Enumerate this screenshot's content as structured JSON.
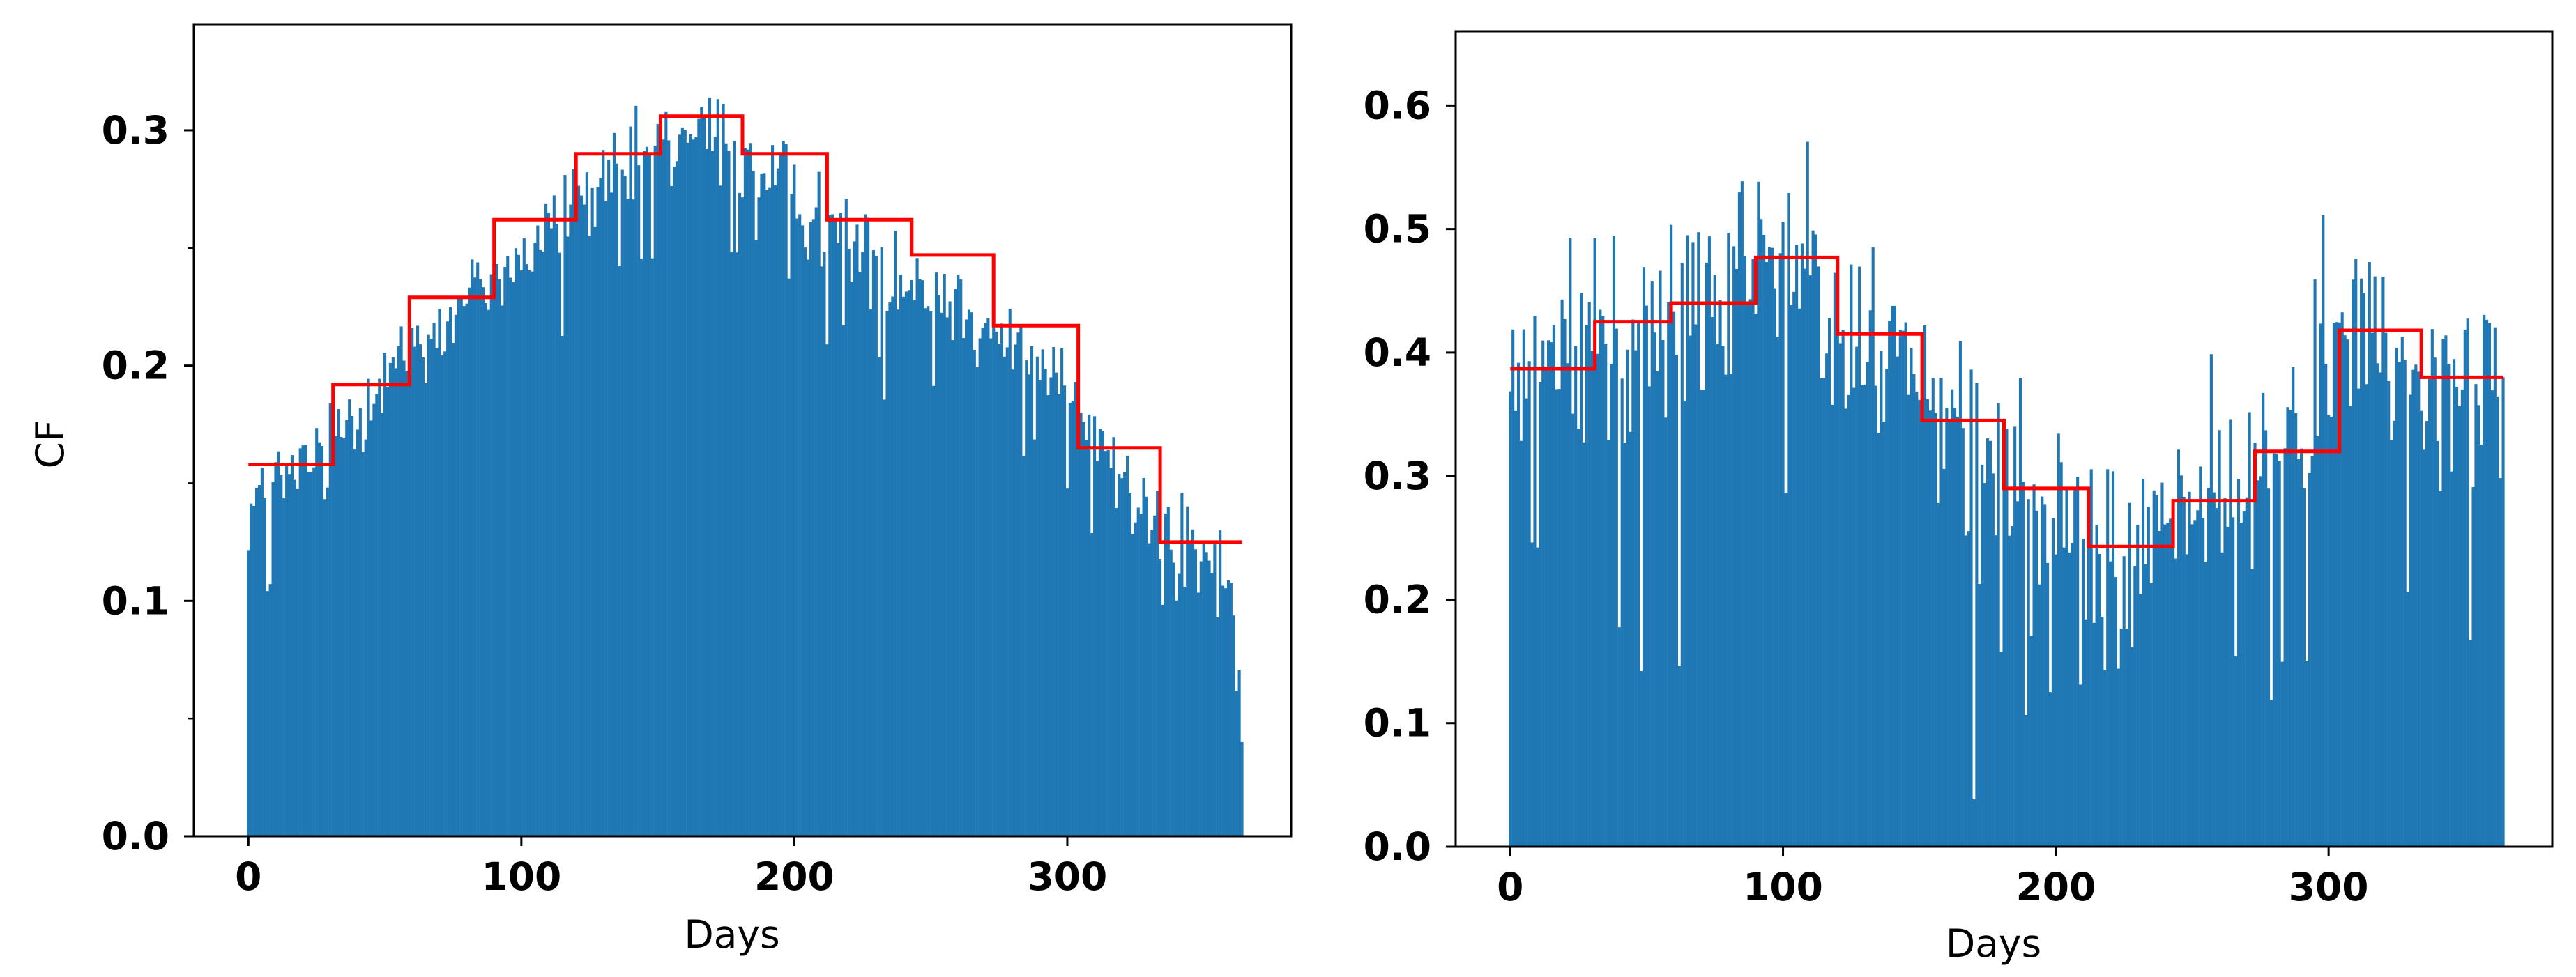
{
  "chart_data": [
    {
      "type": "bar",
      "title": "",
      "xlabel": "Days",
      "ylabel": "CF",
      "xlim": [
        -20,
        382
      ],
      "ylim": [
        0,
        0.345
      ],
      "xticks": [
        0,
        100,
        200,
        300
      ],
      "xtick_labels": [
        "0",
        "100",
        "200",
        "300"
      ],
      "yticks": [
        0.0,
        0.1,
        0.2,
        0.3
      ],
      "ytick_labels": [
        "0.0",
        "0.1",
        "0.2",
        "0.3"
      ],
      "minor_yticks": [
        0.05,
        0.15,
        0.25
      ],
      "grid": false,
      "legend": "none",
      "series": [
        {
          "type": "bar",
          "color": "#1f77b4",
          "x_range": [
            0,
            364
          ],
          "daily_values_sample": [
            {
              "x": 0,
              "y": 0.14
            },
            {
              "x": 10,
              "y": 0.15
            },
            {
              "x": 20,
              "y": 0.155
            },
            {
              "x": 30,
              "y": 0.17
            },
            {
              "x": 45,
              "y": 0.19
            },
            {
              "x": 60,
              "y": 0.21
            },
            {
              "x": 75,
              "y": 0.22
            },
            {
              "x": 90,
              "y": 0.24
            },
            {
              "x": 105,
              "y": 0.25
            },
            {
              "x": 120,
              "y": 0.27
            },
            {
              "x": 135,
              "y": 0.28
            },
            {
              "x": 150,
              "y": 0.29
            },
            {
              "x": 165,
              "y": 0.3
            },
            {
              "x": 180,
              "y": 0.29
            },
            {
              "x": 195,
              "y": 0.28
            },
            {
              "x": 210,
              "y": 0.26
            },
            {
              "x": 225,
              "y": 0.25
            },
            {
              "x": 240,
              "y": 0.24
            },
            {
              "x": 255,
              "y": 0.23
            },
            {
              "x": 270,
              "y": 0.22
            },
            {
              "x": 285,
              "y": 0.2
            },
            {
              "x": 300,
              "y": 0.19
            },
            {
              "x": 315,
              "y": 0.16
            },
            {
              "x": 330,
              "y": 0.14
            },
            {
              "x": 345,
              "y": 0.12
            },
            {
              "x": 360,
              "y": 0.11
            },
            {
              "x": 364,
              "y": 0.04
            }
          ],
          "noise_amplitude": 0.03
        },
        {
          "type": "step",
          "color": "#ff0000",
          "points": [
            [
              0,
              0.158
            ],
            [
              31,
              0.158
            ],
            [
              31,
              0.192
            ],
            [
              59,
              0.192
            ],
            [
              59,
              0.229
            ],
            [
              90,
              0.229
            ],
            [
              90,
              0.262
            ],
            [
              120,
              0.262
            ],
            [
              120,
              0.29
            ],
            [
              151,
              0.29
            ],
            [
              151,
              0.306
            ],
            [
              181,
              0.306
            ],
            [
              181,
              0.29
            ],
            [
              212,
              0.29
            ],
            [
              212,
              0.262
            ],
            [
              243,
              0.262
            ],
            [
              243,
              0.247
            ],
            [
              273,
              0.247
            ],
            [
              273,
              0.217
            ],
            [
              304,
              0.217
            ],
            [
              304,
              0.165
            ],
            [
              334,
              0.165
            ],
            [
              334,
              0.125
            ],
            [
              364,
              0.125
            ]
          ]
        }
      ]
    },
    {
      "type": "bar",
      "title": "",
      "xlabel": "Days",
      "ylabel": "",
      "xlim": [
        -20,
        382
      ],
      "ylim": [
        0,
        0.66
      ],
      "xticks": [
        0,
        100,
        200,
        300
      ],
      "xtick_labels": [
        "0",
        "100",
        "200",
        "300"
      ],
      "yticks": [
        0.0,
        0.1,
        0.2,
        0.3,
        0.4,
        0.5,
        0.6
      ],
      "ytick_labels": [
        "0.0",
        "0.1",
        "0.2",
        "0.3",
        "0.4",
        "0.5",
        "0.6"
      ],
      "minor_yticks": [],
      "grid": false,
      "legend": "none",
      "series": [
        {
          "type": "bar",
          "color": "#1f77b4",
          "x_range": [
            0,
            364
          ],
          "daily_values_sample": [
            {
              "x": 0,
              "y": 0.38
            },
            {
              "x": 15,
              "y": 0.39
            },
            {
              "x": 30,
              "y": 0.42
            },
            {
              "x": 45,
              "y": 0.43
            },
            {
              "x": 60,
              "y": 0.44
            },
            {
              "x": 75,
              "y": 0.44
            },
            {
              "x": 90,
              "y": 0.47
            },
            {
              "x": 105,
              "y": 0.47
            },
            {
              "x": 120,
              "y": 0.42
            },
            {
              "x": 135,
              "y": 0.41
            },
            {
              "x": 150,
              "y": 0.35
            },
            {
              "x": 165,
              "y": 0.34
            },
            {
              "x": 180,
              "y": 0.29
            },
            {
              "x": 195,
              "y": 0.29
            },
            {
              "x": 210,
              "y": 0.25
            },
            {
              "x": 225,
              "y": 0.24
            },
            {
              "x": 240,
              "y": 0.27
            },
            {
              "x": 255,
              "y": 0.28
            },
            {
              "x": 270,
              "y": 0.31
            },
            {
              "x": 285,
              "y": 0.33
            },
            {
              "x": 300,
              "y": 0.4
            },
            {
              "x": 315,
              "y": 0.42
            },
            {
              "x": 330,
              "y": 0.38
            },
            {
              "x": 345,
              "y": 0.38
            },
            {
              "x": 364,
              "y": 0.38
            }
          ],
          "noise_amplitude": 0.13
        },
        {
          "type": "step",
          "color": "#ff0000",
          "points": [
            [
              0,
              0.387
            ],
            [
              31,
              0.387
            ],
            [
              31,
              0.425
            ],
            [
              59,
              0.425
            ],
            [
              59,
              0.44
            ],
            [
              90,
              0.44
            ],
            [
              90,
              0.477
            ],
            [
              120,
              0.477
            ],
            [
              120,
              0.415
            ],
            [
              151,
              0.415
            ],
            [
              151,
              0.345
            ],
            [
              181,
              0.345
            ],
            [
              181,
              0.29
            ],
            [
              212,
              0.29
            ],
            [
              212,
              0.243
            ],
            [
              243,
              0.243
            ],
            [
              243,
              0.28
            ],
            [
              273,
              0.28
            ],
            [
              273,
              0.32
            ],
            [
              304,
              0.32
            ],
            [
              304,
              0.418
            ],
            [
              334,
              0.418
            ],
            [
              334,
              0.38
            ],
            [
              364,
              0.38
            ]
          ]
        }
      ]
    }
  ]
}
